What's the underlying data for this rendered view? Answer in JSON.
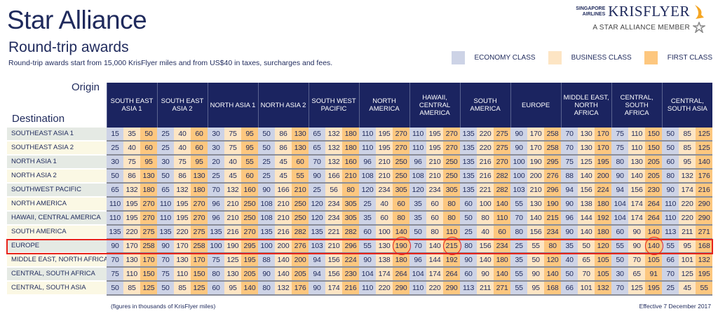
{
  "header": {
    "title": "Star Alliance",
    "subtitle": "Round-trip awards",
    "note": "Round-trip awards start from 15,000 KrisFlyer miles and from US$40 in taxes, surcharges and fees."
  },
  "logo": {
    "airline_line1": "SINGAPORE",
    "airline_line2": "AIRLINES",
    "program": "KRISFLYER",
    "member": "A STAR ALLIANCE MEMBER"
  },
  "legend": [
    {
      "label": "ECONOMY CLASS",
      "color": "#cdd3e6"
    },
    {
      "label": "BUSINESS CLASS",
      "color": "#fde5c4"
    },
    {
      "label": "FIRST CLASS",
      "color": "#fdc77f"
    }
  ],
  "table": {
    "origin_label": "Origin",
    "destination_label": "Destination",
    "origins": [
      "SOUTH EAST ASIA 1",
      "SOUTH EAST ASIA 2",
      "NORTH ASIA 1",
      "NORTH ASIA 2",
      "SOUTH WEST PACIFIC",
      "NORTH AMERICA",
      "HAWAII, CENTRAL AMERICA",
      "SOUTH AMERICA",
      "EUROPE",
      "MIDDLE EAST, NORTH AFRICA",
      "CENTRAL, SOUTH AFRICA",
      "CENTRAL, SOUTH ASIA"
    ],
    "rows": [
      {
        "destination": "SOUTHEAST ASIA 1",
        "values": [
          15,
          35,
          50,
          25,
          40,
          60,
          30,
          75,
          95,
          50,
          86,
          130,
          65,
          132,
          180,
          110,
          195,
          270,
          110,
          195,
          270,
          135,
          220,
          275,
          90,
          170,
          258,
          70,
          130,
          170,
          75,
          110,
          150,
          50,
          85,
          125
        ]
      },
      {
        "destination": "SOUTHEAST ASIA 2",
        "values": [
          25,
          40,
          60,
          25,
          40,
          60,
          30,
          75,
          95,
          50,
          86,
          130,
          65,
          132,
          180,
          110,
          195,
          270,
          110,
          195,
          270,
          135,
          220,
          275,
          90,
          170,
          258,
          70,
          130,
          170,
          75,
          110,
          150,
          50,
          85,
          125
        ]
      },
      {
        "destination": "NORTH ASIA 1",
        "values": [
          30,
          75,
          95,
          30,
          75,
          95,
          20,
          40,
          55,
          25,
          45,
          60,
          70,
          132,
          160,
          96,
          210,
          250,
          96,
          210,
          250,
          135,
          216,
          270,
          100,
          190,
          295,
          75,
          125,
          195,
          80,
          130,
          205,
          60,
          95,
          140
        ]
      },
      {
        "destination": "NORTH ASIA 2",
        "values": [
          50,
          86,
          130,
          50,
          86,
          130,
          25,
          45,
          60,
          25,
          45,
          55,
          90,
          166,
          210,
          108,
          210,
          250,
          108,
          210,
          250,
          135,
          216,
          282,
          100,
          200,
          276,
          88,
          140,
          200,
          90,
          140,
          205,
          80,
          132,
          176
        ]
      },
      {
        "destination": "SOUTHWEST PACIFIC",
        "values": [
          65,
          132,
          180,
          65,
          132,
          180,
          70,
          132,
          160,
          90,
          166,
          210,
          25,
          56,
          80,
          120,
          234,
          305,
          120,
          234,
          305,
          135,
          221,
          282,
          103,
          210,
          296,
          94,
          156,
          224,
          94,
          156,
          230,
          90,
          174,
          216
        ]
      },
      {
        "destination": "NORTH AMERICA",
        "values": [
          110,
          195,
          270,
          110,
          195,
          270,
          96,
          210,
          250,
          108,
          210,
          250,
          120,
          234,
          305,
          25,
          40,
          60,
          35,
          60,
          80,
          60,
          100,
          140,
          55,
          130,
          190,
          90,
          138,
          180,
          104,
          174,
          264,
          110,
          220,
          290
        ]
      },
      {
        "destination": "HAWAII, CENTRAL AMERICA",
        "values": [
          110,
          195,
          270,
          110,
          195,
          270,
          96,
          210,
          250,
          108,
          210,
          250,
          120,
          234,
          305,
          35,
          60,
          80,
          35,
          60,
          80,
          50,
          80,
          110,
          70,
          140,
          215,
          96,
          144,
          192,
          104,
          174,
          264,
          110,
          220,
          290
        ]
      },
      {
        "destination": "SOUTH AMERICA",
        "values": [
          135,
          220,
          275,
          135,
          220,
          275,
          135,
          216,
          270,
          135,
          216,
          282,
          135,
          221,
          282,
          60,
          100,
          140,
          50,
          80,
          110,
          25,
          40,
          60,
          80,
          156,
          234,
          90,
          140,
          180,
          60,
          90,
          140,
          113,
          211,
          271
        ]
      },
      {
        "destination": "EUROPE",
        "values": [
          90,
          170,
          258,
          90,
          170,
          258,
          100,
          190,
          295,
          100,
          200,
          276,
          103,
          210,
          296,
          55,
          130,
          190,
          70,
          140,
          215,
          80,
          156,
          234,
          25,
          55,
          80,
          35,
          50,
          120,
          55,
          90,
          140,
          55,
          95,
          168
        ]
      },
      {
        "destination": "MIDDLE EAST, NORTH AFRICA",
        "values": [
          70,
          130,
          170,
          70,
          130,
          170,
          75,
          125,
          195,
          88,
          140,
          200,
          94,
          156,
          224,
          90,
          138,
          180,
          96,
          144,
          192,
          90,
          140,
          180,
          35,
          50,
          120,
          40,
          65,
          105,
          50,
          70,
          105,
          66,
          101,
          132
        ]
      },
      {
        "destination": "CENTRAL, SOUTH AFRICA",
        "values": [
          75,
          110,
          150,
          75,
          110,
          150,
          80,
          130,
          205,
          90,
          140,
          205,
          94,
          156,
          230,
          104,
          174,
          264,
          104,
          174,
          264,
          60,
          90,
          140,
          55,
          90,
          140,
          50,
          70,
          105,
          30,
          65,
          91,
          70,
          125,
          195
        ]
      },
      {
        "destination": "CENTRAL, SOUTH ASIA",
        "values": [
          50,
          85,
          125,
          50,
          85,
          125,
          60,
          95,
          140,
          80,
          132,
          176,
          90,
          174,
          216,
          110,
          220,
          290,
          110,
          220,
          290,
          113,
          211,
          271,
          55,
          95,
          168,
          66,
          101,
          132,
          70,
          125,
          195,
          25,
          45,
          55
        ]
      }
    ]
  },
  "highlight": {
    "row": "EUROPE",
    "circled": [
      "NORTH AMERICA first class",
      "HAWAII, CENTRAL AMERICA first class",
      "CENTRAL, SOUTH AFRICA first class"
    ],
    "color": "#e8231b"
  },
  "footer": {
    "units": "(figures in thousands of KrisFlyer miles)",
    "effective": "Effective 7 December 2017"
  }
}
